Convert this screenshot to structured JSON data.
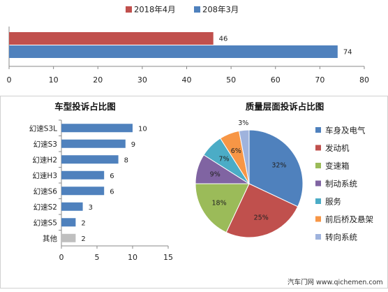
{
  "footer_text": "汽车门网 www.qichemen.com",
  "chart_data": [
    {
      "type": "bar",
      "orientation": "horizontal",
      "categories": [
        ""
      ],
      "series": [
        {
          "name": "2018年4月",
          "color": "#c0504d",
          "values": [
            46
          ]
        },
        {
          "name": "208年3月",
          "color": "#4f81bd",
          "values": [
            74
          ]
        }
      ],
      "xlim": [
        0,
        80
      ],
      "xticks": [
        0,
        10,
        20,
        30,
        40,
        50,
        60,
        70,
        80
      ],
      "legend_position": "top",
      "title": "",
      "xlabel": "",
      "ylabel": ""
    },
    {
      "type": "bar",
      "orientation": "horizontal",
      "title": "车型投诉占比图",
      "categories": [
        "幻速S3L",
        "幻速S3",
        "幻速H2",
        "幻速H3",
        "幻速S6",
        "幻速S2",
        "幻速S5",
        "其他"
      ],
      "values": [
        10,
        9,
        8,
        6,
        6,
        3,
        2,
        2
      ],
      "colors": [
        "#4f81bd",
        "#4f81bd",
        "#4f81bd",
        "#4f81bd",
        "#4f81bd",
        "#4f81bd",
        "#4f81bd",
        "#bfbfbf"
      ],
      "xlim": [
        0,
        15
      ],
      "xticks": [
        0,
        5,
        10,
        15
      ],
      "xlabel": "",
      "ylabel": ""
    },
    {
      "type": "pie",
      "title": "质量层面投诉占比图",
      "labels": [
        "车身及电气",
        "发动机",
        "变速箱",
        "制动系统",
        "服务",
        "前后桥及悬架",
        "转向系统"
      ],
      "values": [
        32,
        25,
        18,
        9,
        7,
        6,
        3
      ],
      "value_labels": [
        "32%",
        "25%",
        "18%",
        "9%",
        "7%",
        "6%",
        "3%"
      ],
      "colors": [
        "#4f81bd",
        "#c0504d",
        "#9bbb59",
        "#8064a2",
        "#4bacc6",
        "#f79646",
        "#9fb3dd"
      ],
      "legend_position": "right"
    }
  ]
}
